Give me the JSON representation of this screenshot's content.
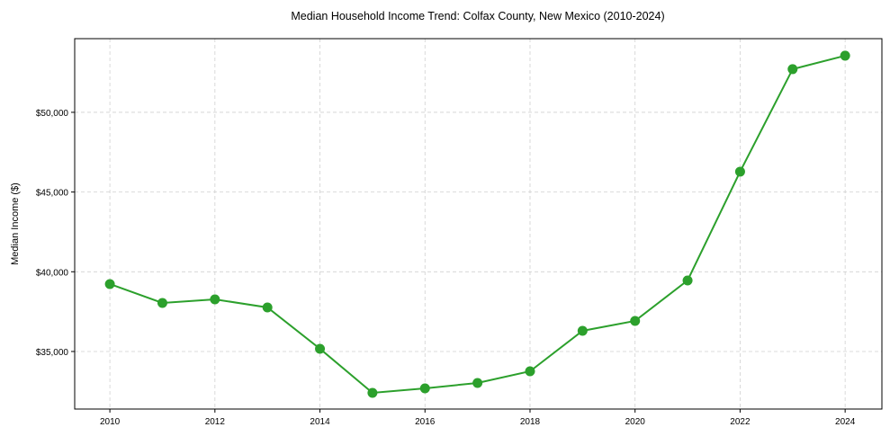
{
  "chart_data": {
    "type": "line",
    "title": "Median Household Income Trend: Colfax County, New Mexico (2010-2024)",
    "xlabel": "",
    "ylabel": "Median Income ($)",
    "x": [
      2010,
      2011,
      2012,
      2013,
      2014,
      2015,
      2016,
      2017,
      2018,
      2019,
      2020,
      2021,
      2022,
      2023,
      2024
    ],
    "series": [
      {
        "name": "Median Income",
        "color": "#2ca02c",
        "values": [
          39230,
          38045,
          38270,
          37763,
          35170,
          32406,
          32689,
          33026,
          33759,
          36297,
          36917,
          39455,
          46278,
          52707,
          53553
        ]
      }
    ],
    "xlim": [
      2009.33,
      2024.7
    ],
    "ylim": [
      31390,
      54620
    ],
    "xticks": [
      2010,
      2012,
      2014,
      2016,
      2018,
      2020,
      2022,
      2024
    ],
    "xtick_labels": [
      "2010",
      "2012",
      "2014",
      "2016",
      "2018",
      "2020",
      "2022",
      "2024"
    ],
    "yticks": [
      35000,
      40000,
      45000,
      50000
    ],
    "ytick_labels": [
      "$35,000",
      "$40,000",
      "$45,000",
      "$50,000"
    ],
    "grid": true
  }
}
